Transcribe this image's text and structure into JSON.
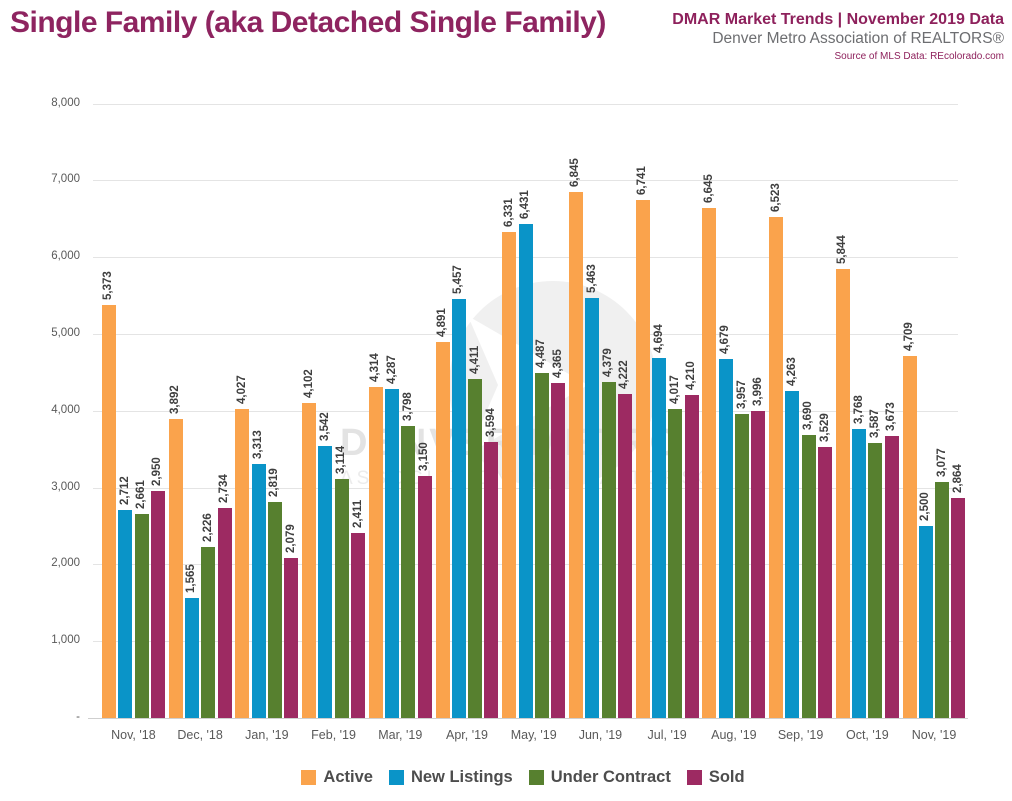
{
  "header": {
    "title": "Single Family (aka Detached Single Family)",
    "trends_line": "DMAR Market Trends | November 2019 Data",
    "org_line": "Denver Metro Association of REALTORS®",
    "source_line": "Source of MLS Data: REcolorado.com",
    "title_color": "#8E2460",
    "accent_color": "#8E215C"
  },
  "watermark": {
    "line1": "DENVER METRO",
    "line2": "ASSOCIATION OF REALTORS®"
  },
  "chart_data": {
    "type": "bar",
    "title": "Single Family (aka Detached Single Family)",
    "categories": [
      "Nov, '18",
      "Dec, '18",
      "Jan, '19",
      "Feb, '19",
      "Mar, '19",
      "Apr, '19",
      "May, '19",
      "Jun, '19",
      "Jul, '19",
      "Aug, '19",
      "Sep, '19",
      "Oct, '19",
      "Nov, '19"
    ],
    "series": [
      {
        "name": "Active",
        "color": "#FAA34C",
        "values": [
          5373,
          3892,
          4027,
          4102,
          4314,
          4891,
          6331,
          6845,
          6741,
          6645,
          6523,
          5844,
          4709
        ]
      },
      {
        "name": "New Listings",
        "color": "#0A94C8",
        "values": [
          2712,
          1565,
          3313,
          3542,
          4287,
          5457,
          6431,
          5463,
          4694,
          4679,
          4263,
          3768,
          2500
        ]
      },
      {
        "name": "Under Contract",
        "color": "#57802F",
        "values": [
          2661,
          2226,
          2819,
          3114,
          3798,
          4411,
          4487,
          4379,
          4017,
          3957,
          3690,
          3587,
          3077
        ]
      },
      {
        "name": "Sold",
        "color": "#9D2A62",
        "values": [
          2950,
          2734,
          2079,
          2411,
          3150,
          3594,
          4365,
          4222,
          4210,
          3996,
          3529,
          3673,
          2864
        ]
      }
    ],
    "xlabel": "",
    "ylabel": "",
    "ylim": [
      0,
      8000
    ],
    "ytick_interval": 1000,
    "ytick_labels": [
      "-",
      "1,000",
      "2,000",
      "3,000",
      "4,000",
      "5,000",
      "6,000",
      "7,000",
      "8,000"
    ],
    "grid": true,
    "legend_position": "bottom",
    "value_labels": true,
    "value_label_color": "#3F3F3F"
  }
}
